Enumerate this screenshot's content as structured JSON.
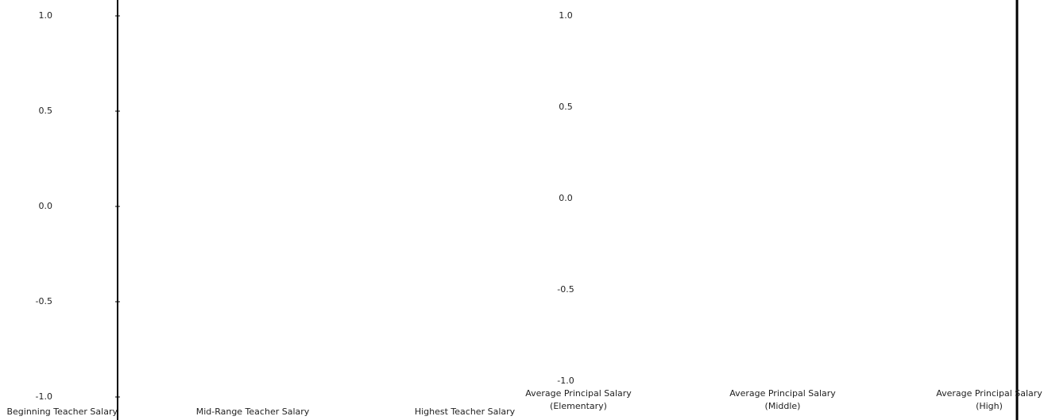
{
  "chart_data": {
    "type": "bar",
    "categories": [
      "Beginning Teacher Salary",
      "Mid-Range Teacher Salary",
      "Highest Teacher Salary",
      "Average Principal Salary\n(Elementary)",
      "Average Principal Salary\n(Middle)",
      "Average Principal Salary\n(High)"
    ],
    "ylim": [
      -1,
      1
    ],
    "yticks": [
      {
        "value": -1,
        "label": "-1.0"
      },
      -0.5,
      {
        "value": 0,
        "label": "0.0"
      },
      0.5,
      {
        "value": 1,
        "label": "1.0"
      }
    ],
    "y2lim": [
      -1,
      1
    ],
    "y2ticks": [
      {
        "value": -1,
        "label": "-1.0"
      },
      -0.5,
      {
        "value": 0,
        "label": "0.0"
      },
      0.5,
      {
        "value": 1,
        "label": "1.0"
      }
    ]
  }
}
